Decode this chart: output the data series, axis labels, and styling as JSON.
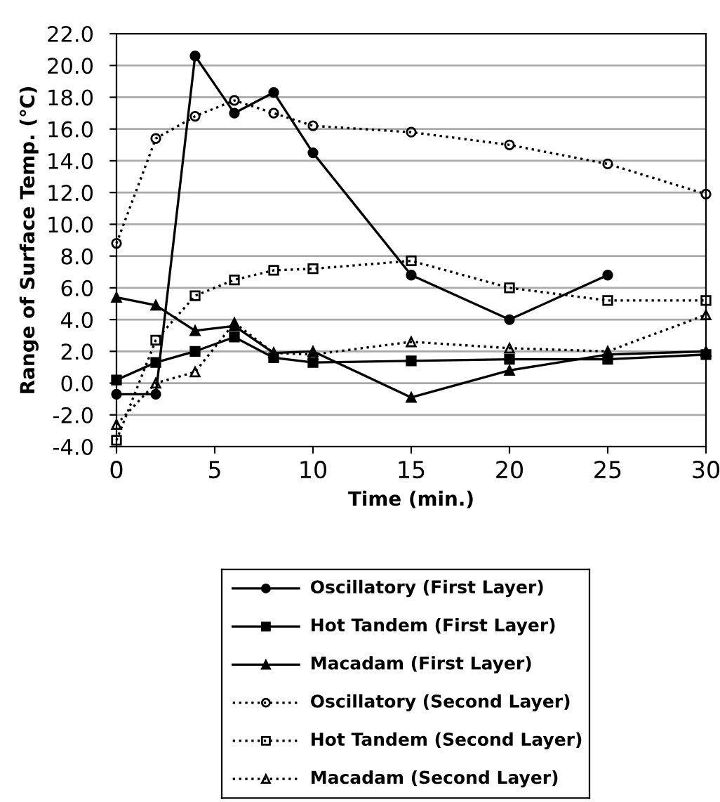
{
  "chart_data": {
    "type": "line",
    "xlabel": "Time (min.)",
    "ylabel": "Range of Surface Temp. (℃)",
    "x": [
      0,
      2,
      4,
      6,
      8,
      10,
      15,
      20,
      25,
      30
    ],
    "xlim": [
      0,
      30
    ],
    "xticks": [
      0,
      5,
      10,
      15,
      20,
      25,
      30
    ],
    "ylim": [
      -4,
      22
    ],
    "yticks": [
      {
        "value": -4,
        "label": "-4.0"
      },
      {
        "value": -2,
        "label": "-2.0"
      },
      {
        "value": 0,
        "label": "0.0"
      },
      {
        "value": 2,
        "label": "2.0"
      },
      {
        "value": 4,
        "label": "4.0"
      },
      {
        "value": 6,
        "label": "6.0"
      },
      {
        "value": 8,
        "label": "8.0"
      },
      {
        "value": 10,
        "label": "10.0"
      },
      {
        "value": 12,
        "label": "12.0"
      },
      {
        "value": 14,
        "label": "14.0"
      },
      {
        "value": 16,
        "label": "16.0"
      },
      {
        "value": 18,
        "label": "18.0"
      },
      {
        "value": 20,
        "label": "20.0"
      },
      {
        "value": 22,
        "label": "22.0"
      }
    ],
    "grid": "y",
    "legend": "bottom",
    "series": [
      {
        "name": "Oscillatory (First Layer)",
        "color": "#000000",
        "marker": "circle",
        "line_style": "solid",
        "values": [
          -0.7,
          -0.7,
          20.6,
          17.0,
          18.3,
          14.5,
          6.8,
          4.0,
          6.8,
          null
        ]
      },
      {
        "name": "Hot Tandem (First Layer)",
        "color": "#000000",
        "marker": "square",
        "line_style": "solid",
        "values": [
          0.2,
          1.3,
          2.0,
          2.9,
          1.6,
          1.3,
          1.4,
          1.5,
          1.5,
          1.8
        ]
      },
      {
        "name": "Macadam (First Layer)",
        "color": "#000000",
        "marker": "triangle",
        "line_style": "solid",
        "values": [
          5.4,
          4.9,
          3.3,
          3.6,
          1.9,
          2.0,
          -0.9,
          0.8,
          1.8,
          2.0
        ]
      },
      {
        "name": "Oscillatory (Second Layer)",
        "color": "#000000",
        "marker": "circle",
        "line_style": "dotted",
        "values": [
          8.8,
          15.4,
          16.8,
          17.8,
          17.0,
          16.2,
          15.8,
          15.0,
          13.8,
          11.9
        ]
      },
      {
        "name": "Hot Tandem (Second Layer)",
        "color": "#000000",
        "marker": "square",
        "line_style": "dotted",
        "values": [
          -3.6,
          2.7,
          5.5,
          6.5,
          7.1,
          7.2,
          7.7,
          6.0,
          5.2,
          5.2
        ]
      },
      {
        "name": "Macadam (Second Layer)",
        "color": "#000000",
        "marker": "triangle",
        "line_style": "dotted",
        "values": [
          -2.6,
          0.0,
          0.7,
          3.8,
          1.9,
          1.8,
          2.6,
          2.2,
          2.0,
          4.3
        ]
      }
    ]
  }
}
